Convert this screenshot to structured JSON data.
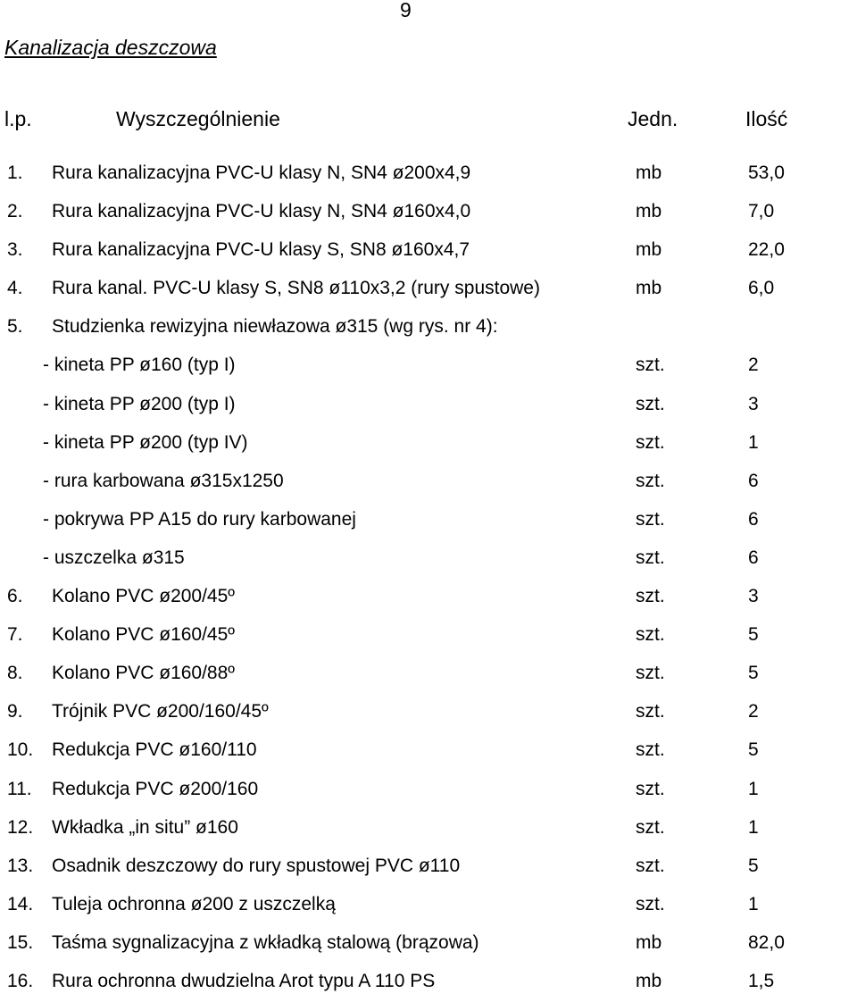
{
  "page_number": "9",
  "title": "Kanalizacja deszczowa",
  "header": {
    "lp": "l.p.",
    "description": "Wyszczególnienie",
    "unit": "Jedn.",
    "quantity": "Ilość"
  },
  "rows": [
    {
      "num": "1.",
      "desc": "Rura kanalizacyjna PVC-U klasy N, SN4 ø200x4,9",
      "unit": "mb",
      "qty": "53,0"
    },
    {
      "num": "2.",
      "desc": "Rura kanalizacyjna PVC-U klasy N, SN4 ø160x4,0",
      "unit": "mb",
      "qty": "7,0"
    },
    {
      "num": "3.",
      "desc": "Rura kanalizacyjna PVC-U klasy S, SN8 ø160x4,7",
      "unit": "mb",
      "qty": "22,0"
    },
    {
      "num": "4.",
      "desc": "Rura kanal. PVC-U klasy S, SN8 ø110x3,2 (rury spustowe)",
      "unit": "mb",
      "qty": "6,0"
    },
    {
      "num": "5.",
      "desc": "Studzienka rewizyjna niewłazowa ø315 (wg rys. nr 4):",
      "unit": "",
      "qty": ""
    },
    {
      "num": "",
      "desc": "- kineta PP ø160 (typ I)",
      "unit": "szt.",
      "qty": "2"
    },
    {
      "num": "",
      "desc": "- kineta PP ø200 (typ I)",
      "unit": "szt.",
      "qty": "3"
    },
    {
      "num": "",
      "desc": "- kineta PP ø200 (typ IV)",
      "unit": "szt.",
      "qty": "1"
    },
    {
      "num": "",
      "desc": "- rura karbowana ø315x1250",
      "unit": "szt.",
      "qty": "6"
    },
    {
      "num": "",
      "desc": "- pokrywa PP A15 do rury karbowanej",
      "unit": "szt.",
      "qty": "6"
    },
    {
      "num": "",
      "desc": "- uszczelka ø315",
      "unit": "szt.",
      "qty": "6"
    },
    {
      "num": "6.",
      "desc": "Kolano PVC ø200/45º",
      "unit": "szt.",
      "qty": "3"
    },
    {
      "num": "7.",
      "desc": "Kolano PVC ø160/45º",
      "unit": "szt.",
      "qty": "5"
    },
    {
      "num": "8.",
      "desc": "Kolano PVC ø160/88º",
      "unit": "szt.",
      "qty": "5"
    },
    {
      "num": "9.",
      "desc": "Trójnik PVC ø200/160/45º",
      "unit": "szt.",
      "qty": "2"
    },
    {
      "num": "10.",
      "desc": "Redukcja PVC ø160/110",
      "unit": "szt.",
      "qty": "5"
    },
    {
      "num": "11.",
      "desc": "Redukcja PVC ø200/160",
      "unit": "szt.",
      "qty": "1"
    },
    {
      "num": "12.",
      "desc": "Wkładka „in situ” ø160",
      "unit": "szt.",
      "qty": "1"
    },
    {
      "num": "13.",
      "desc": "Osadnik deszczowy do rury spustowej PVC ø110",
      "unit": "szt.",
      "qty": "5"
    },
    {
      "num": "14.",
      "desc": "Tuleja ochronna ø200 z uszczelką",
      "unit": "szt.",
      "qty": "1"
    },
    {
      "num": "15.",
      "desc": "Taśma sygnalizacyjna z wkładką stalową (brązowa)",
      "unit": "mb",
      "qty": "82,0"
    },
    {
      "num": "16.",
      "desc": "Rura ochronna dwudzielna  Arot typu A 110 PS",
      "unit": "mb",
      "qty": "1,5"
    }
  ]
}
